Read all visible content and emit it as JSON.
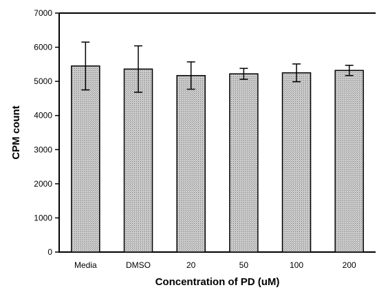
{
  "chart_data": {
    "type": "bar",
    "title": "",
    "xlabel": "Concentration of PD (uM)",
    "ylabel": "CPM count",
    "categories": [
      "Media",
      "DMSO",
      "20",
      "50",
      "100",
      "200"
    ],
    "values": [
      5450,
      5360,
      5170,
      5220,
      5250,
      5320
    ],
    "error": [
      700,
      680,
      400,
      160,
      260,
      150
    ],
    "ylim": [
      0,
      7000
    ],
    "yticks": [
      0,
      1000,
      2000,
      3000,
      4000,
      5000,
      6000,
      7000
    ],
    "grid": false,
    "colors": {
      "bar_fill": "#c8c8c8",
      "bar_hatch": "#8a8a8a",
      "stroke": "#000000"
    }
  }
}
